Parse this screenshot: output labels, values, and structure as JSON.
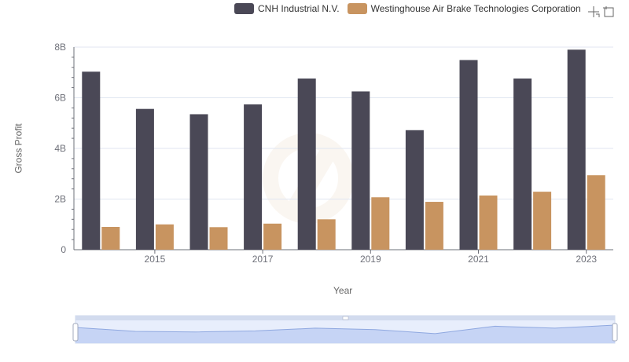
{
  "chart_data": {
    "type": "bar",
    "x": [
      2014,
      2015,
      2016,
      2017,
      2018,
      2019,
      2020,
      2021,
      2022,
      2023
    ],
    "x_tick_labels": [
      "2015",
      "2017",
      "2019",
      "2021",
      "2023"
    ],
    "y_tick_labels": [
      "0",
      "2B",
      "4B",
      "6B",
      "8B"
    ],
    "ylim": [
      0,
      8000000000
    ],
    "xlabel": "Year",
    "ylabel": "Gross Profit",
    "legend_position": "top-right",
    "grid": true,
    "series": [
      {
        "name": "CNH Industrial N.V.",
        "color": "#4a4856",
        "values": [
          7030000000,
          5560000000,
          5350000000,
          5740000000,
          6760000000,
          6250000000,
          4720000000,
          7490000000,
          6760000000,
          7900000000
        ]
      },
      {
        "name": "Westinghouse Air Brake Technologies Corporation",
        "color": "#c89460",
        "values": [
          900000000,
          1000000000,
          890000000,
          1030000000,
          1200000000,
          2070000000,
          1890000000,
          2140000000,
          2290000000,
          2940000000
        ]
      }
    ]
  },
  "toolbox": {
    "zoom_icon": "zoom-crosshair-icon",
    "restore_icon": "restore-box-icon"
  }
}
